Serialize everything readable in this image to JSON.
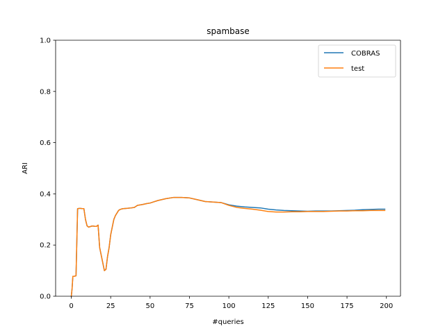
{
  "chart_data": {
    "type": "line",
    "title": "spambase",
    "xlabel": "#queries",
    "ylabel": "ARI",
    "xlim": [
      -9.95,
      208.95
    ],
    "ylim": [
      0.0,
      1.0
    ],
    "xticks": [
      0,
      25,
      50,
      75,
      100,
      125,
      150,
      175,
      200
    ],
    "xtick_labels": [
      "0",
      "25",
      "50",
      "75",
      "100",
      "125",
      "150",
      "175",
      "200"
    ],
    "yticks": [
      0.0,
      0.2,
      0.4,
      0.6,
      0.8,
      1.0
    ],
    "ytick_labels": [
      "0.0",
      "0.2",
      "0.4",
      "0.6",
      "0.8",
      "1.0"
    ],
    "grid": false,
    "legend_position": "top-right",
    "series": [
      {
        "name": "COBRAS",
        "color": "#1f77b4",
        "x": [
          0,
          0.5,
          1,
          2,
          3,
          4,
          5,
          6,
          7,
          8,
          9,
          10,
          11,
          12,
          13,
          14,
          15,
          16,
          17,
          18,
          19,
          20,
          21,
          22,
          23,
          24,
          25,
          26,
          27,
          28,
          29,
          30,
          31,
          32,
          33,
          35,
          38,
          40,
          42,
          45,
          48,
          50,
          52,
          55,
          60,
          65,
          70,
          75,
          80,
          85,
          90,
          95,
          100,
          105,
          110,
          115,
          120,
          125,
          130,
          135,
          140,
          145,
          150,
          155,
          160,
          165,
          170,
          175,
          180,
          185,
          190,
          195,
          199
        ],
        "y": [
          0.0,
          0.03,
          0.078,
          0.078,
          0.08,
          0.342,
          0.343,
          0.343,
          0.342,
          0.342,
          0.3,
          0.275,
          0.27,
          0.272,
          0.274,
          0.274,
          0.273,
          0.273,
          0.278,
          0.19,
          0.16,
          0.13,
          0.1,
          0.105,
          0.155,
          0.19,
          0.24,
          0.27,
          0.3,
          0.315,
          0.325,
          0.335,
          0.339,
          0.341,
          0.342,
          0.343,
          0.345,
          0.347,
          0.355,
          0.358,
          0.362,
          0.364,
          0.368,
          0.374,
          0.381,
          0.386,
          0.386,
          0.384,
          0.377,
          0.37,
          0.368,
          0.366,
          0.357,
          0.352,
          0.349,
          0.347,
          0.345,
          0.34,
          0.337,
          0.335,
          0.334,
          0.333,
          0.332,
          0.333,
          0.333,
          0.333,
          0.334,
          0.335,
          0.336,
          0.338,
          0.339,
          0.34,
          0.34
        ]
      },
      {
        "name": "test",
        "color": "#ff7f0e",
        "x": [
          0,
          0.5,
          1,
          2,
          3,
          4,
          5,
          6,
          7,
          8,
          9,
          10,
          11,
          12,
          13,
          14,
          15,
          16,
          17,
          18,
          19,
          20,
          21,
          22,
          23,
          24,
          25,
          26,
          27,
          28,
          29,
          30,
          31,
          32,
          33,
          35,
          38,
          40,
          42,
          45,
          48,
          50,
          52,
          55,
          60,
          65,
          70,
          75,
          80,
          85,
          90,
          95,
          100,
          105,
          110,
          115,
          120,
          125,
          130,
          135,
          140,
          145,
          150,
          155,
          160,
          165,
          170,
          175,
          180,
          185,
          190,
          195,
          199
        ],
        "y": [
          0.0,
          0.03,
          0.078,
          0.078,
          0.08,
          0.342,
          0.343,
          0.343,
          0.342,
          0.342,
          0.3,
          0.275,
          0.27,
          0.272,
          0.274,
          0.274,
          0.273,
          0.273,
          0.278,
          0.19,
          0.16,
          0.13,
          0.1,
          0.105,
          0.155,
          0.19,
          0.24,
          0.27,
          0.3,
          0.315,
          0.325,
          0.335,
          0.339,
          0.341,
          0.342,
          0.343,
          0.345,
          0.347,
          0.355,
          0.358,
          0.362,
          0.364,
          0.368,
          0.374,
          0.381,
          0.386,
          0.386,
          0.384,
          0.377,
          0.37,
          0.368,
          0.366,
          0.355,
          0.347,
          0.343,
          0.34,
          0.336,
          0.331,
          0.329,
          0.329,
          0.33,
          0.33,
          0.331,
          0.331,
          0.331,
          0.332,
          0.333,
          0.333,
          0.334,
          0.334,
          0.335,
          0.335,
          0.335
        ]
      }
    ]
  }
}
